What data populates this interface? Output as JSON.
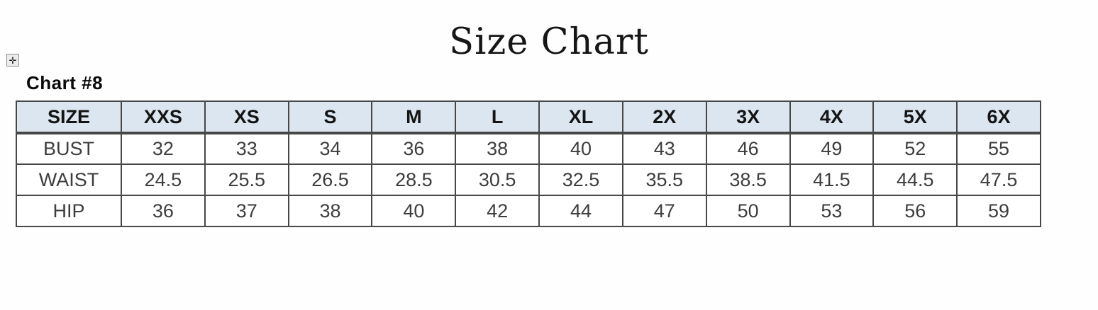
{
  "page": {
    "title": "Size Chart",
    "chart_label": "Chart #8"
  },
  "icons": {
    "table_move_handle": "✛"
  },
  "colors": {
    "header_bg": "#dbe6f1",
    "border": "#474747",
    "title_text": "#161616",
    "data_text": "#3d3d3d"
  },
  "chart_data": {
    "type": "table",
    "title": "Size Chart",
    "label": "Chart #8",
    "header": [
      "SIZE",
      "XXS",
      "XS",
      "S",
      "M",
      "L",
      "XL",
      "2X",
      "3X",
      "4X",
      "5X",
      "6X"
    ],
    "rows": [
      {
        "label": "BUST",
        "values": [
          "32",
          "33",
          "34",
          "36",
          "38",
          "40",
          "43",
          "46",
          "49",
          "52",
          "55"
        ]
      },
      {
        "label": "WAIST",
        "values": [
          "24.5",
          "25.5",
          "26.5",
          "28.5",
          "30.5",
          "32.5",
          "35.5",
          "38.5",
          "41.5",
          "44.5",
          "47.5"
        ]
      },
      {
        "label": "HIP",
        "values": [
          "36",
          "37",
          "38",
          "40",
          "42",
          "44",
          "47",
          "50",
          "53",
          "56",
          "59"
        ]
      }
    ]
  }
}
